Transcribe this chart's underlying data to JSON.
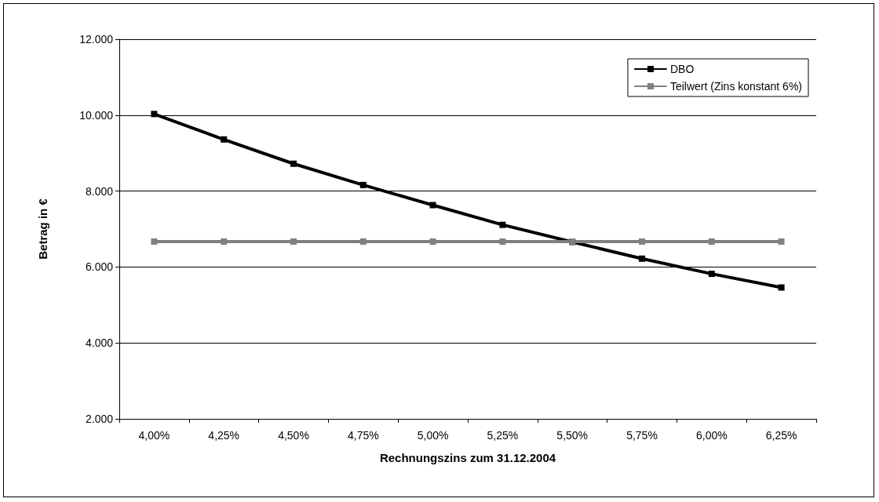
{
  "chart_data": {
    "type": "line",
    "xlabel": "Rechnungszins zum 31.12.2004",
    "ylabel": "Betrag in €",
    "categories": [
      "4,00%",
      "4,25%",
      "4,50%",
      "4,75%",
      "5,00%",
      "5,25%",
      "5,50%",
      "5,75%",
      "6,00%",
      "6,25%"
    ],
    "series": [
      {
        "name": "DBO",
        "color": "#000000",
        "values": [
          10030,
          9360,
          8720,
          8160,
          7630,
          7110,
          6660,
          6220,
          5820,
          5460
        ]
      },
      {
        "name": "Teilwert (Zins konstant 6%)",
        "color": "#808080",
        "values": [
          6670,
          6670,
          6670,
          6670,
          6670,
          6670,
          6670,
          6670,
          6670,
          6670
        ]
      }
    ],
    "ylim": [
      2000,
      12000
    ],
    "yticks": [
      {
        "value": 2000,
        "label": "2.000"
      },
      {
        "value": 4000,
        "label": "4.000"
      },
      {
        "value": 6000,
        "label": "6.000"
      },
      {
        "value": 8000,
        "label": "8.000"
      },
      {
        "value": 10000,
        "label": "10.000"
      },
      {
        "value": 12000,
        "label": "12.000"
      }
    ],
    "grid": "y",
    "legend": "top right",
    "marker": "square",
    "line_style": "solid"
  }
}
